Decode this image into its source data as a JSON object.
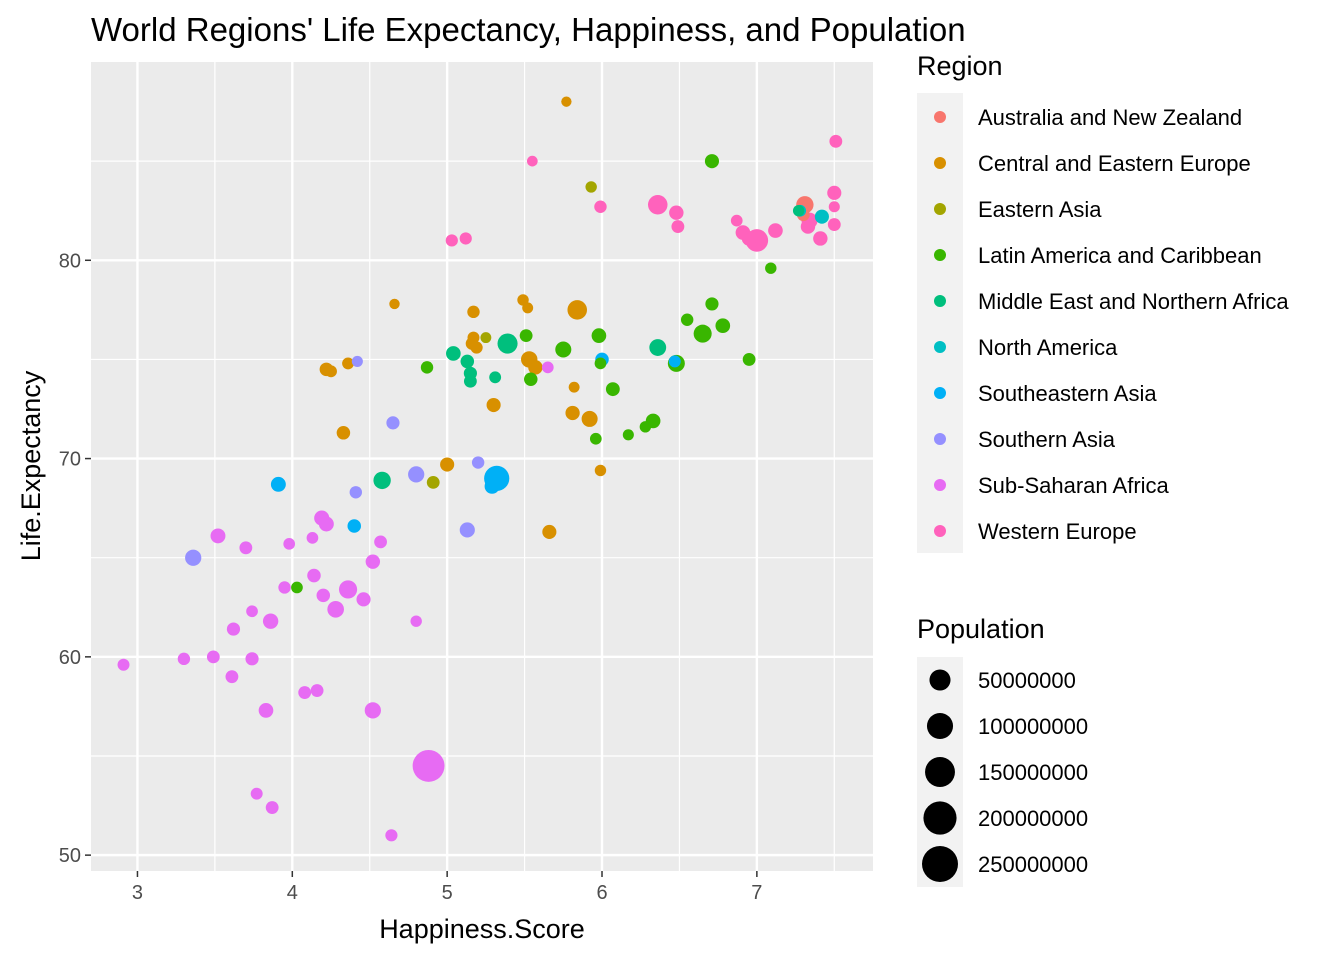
{
  "chart_data": {
    "type": "scatter",
    "title": "World Regions' Life Expectancy, Happiness, and Population",
    "xlabel": "Happiness.Score",
    "ylabel": "Life.Expectancy",
    "xlim": [
      2.7,
      7.75
    ],
    "ylim": [
      49.2,
      90
    ],
    "xticks": [
      3,
      4,
      5,
      6,
      7
    ],
    "yticks": [
      50,
      60,
      70,
      80
    ],
    "grid": true,
    "legend_position": "right",
    "color_legend": {
      "title": "Region",
      "entries": [
        {
          "name": "Australia and New Zealand",
          "color": "#F8766D"
        },
        {
          "name": "Central and Eastern Europe",
          "color": "#D89000"
        },
        {
          "name": "Eastern Asia",
          "color": "#A3A500"
        },
        {
          "name": "Latin America and Caribbean",
          "color": "#39B600"
        },
        {
          "name": "Middle East and Northern Africa",
          "color": "#00BF7D"
        },
        {
          "name": "North America",
          "color": "#00BFC4"
        },
        {
          "name": "Southeastern Asia",
          "color": "#00B0F6"
        },
        {
          "name": "Southern Asia",
          "color": "#9590FF"
        },
        {
          "name": "Sub-Saharan Africa",
          "color": "#E76BF3"
        },
        {
          "name": "Western Europe",
          "color": "#FF62BC"
        }
      ]
    },
    "size_legend": {
      "title": "Population",
      "entries": [
        {
          "label": "50000000",
          "value": 50000000
        },
        {
          "label": "100000000",
          "value": 100000000
        },
        {
          "label": "150000000",
          "value": 150000000
        },
        {
          "label": "200000000",
          "value": 200000000
        },
        {
          "label": "250000000",
          "value": 250000000
        }
      ]
    },
    "points": [
      {
        "region": 0,
        "x": 7.31,
        "y": 82.8,
        "pop": 24000000
      },
      {
        "region": 0,
        "x": 7.3,
        "y": 82.3,
        "pop": 5000000
      },
      {
        "region": 1,
        "x": 5.77,
        "y": 88.0,
        "pop": 600000
      },
      {
        "region": 1,
        "x": 5.84,
        "y": 77.5,
        "pop": 38000000
      },
      {
        "region": 1,
        "x": 4.66,
        "y": 77.8,
        "pop": 700000
      },
      {
        "region": 1,
        "x": 5.17,
        "y": 77.4,
        "pop": 4000000
      },
      {
        "region": 1,
        "x": 5.49,
        "y": 78.0,
        "pop": 2000000
      },
      {
        "region": 1,
        "x": 5.52,
        "y": 77.6,
        "pop": 1300000
      },
      {
        "region": 1,
        "x": 5.17,
        "y": 76.1,
        "pop": 3000000
      },
      {
        "region": 1,
        "x": 5.16,
        "y": 75.8,
        "pop": 4000000
      },
      {
        "region": 1,
        "x": 5.19,
        "y": 75.6,
        "pop": 3500000
      },
      {
        "region": 1,
        "x": 5.53,
        "y": 75.0,
        "pop": 19000000
      },
      {
        "region": 1,
        "x": 5.57,
        "y": 74.6,
        "pop": 10000000
      },
      {
        "region": 1,
        "x": 4.22,
        "y": 74.5,
        "pop": 7000000
      },
      {
        "region": 1,
        "x": 4.25,
        "y": 74.4,
        "pop": 2800000
      },
      {
        "region": 1,
        "x": 4.36,
        "y": 74.8,
        "pop": 2800000
      },
      {
        "region": 1,
        "x": 5.82,
        "y": 73.6,
        "pop": 1300000
      },
      {
        "region": 1,
        "x": 5.3,
        "y": 72.7,
        "pop": 9000000
      },
      {
        "region": 1,
        "x": 5.81,
        "y": 72.3,
        "pop": 9500000
      },
      {
        "region": 1,
        "x": 5.92,
        "y": 72.0,
        "pop": 17000000
      },
      {
        "region": 1,
        "x": 4.33,
        "y": 71.3,
        "pop": 7000000
      },
      {
        "region": 1,
        "x": 5.0,
        "y": 69.7,
        "pop": 9000000
      },
      {
        "region": 1,
        "x": 5.99,
        "y": 69.4,
        "pop": 2000000
      },
      {
        "region": 1,
        "x": 5.66,
        "y": 66.3,
        "pop": 9000000
      },
      {
        "region": 2,
        "x": 5.93,
        "y": 83.7,
        "pop": 2000000
      },
      {
        "region": 2,
        "x": 5.25,
        "y": 76.1,
        "pop": 1200000
      },
      {
        "region": 2,
        "x": 4.91,
        "y": 68.8,
        "pop": 5000000
      },
      {
        "region": 3,
        "x": 6.71,
        "y": 85.0,
        "pop": 9000000
      },
      {
        "region": 3,
        "x": 7.09,
        "y": 79.6,
        "pop": 2000000
      },
      {
        "region": 3,
        "x": 6.71,
        "y": 77.8,
        "pop": 6000000
      },
      {
        "region": 3,
        "x": 6.78,
        "y": 76.7,
        "pop": 11000000
      },
      {
        "region": 3,
        "x": 6.65,
        "y": 76.3,
        "pop": 28000000
      },
      {
        "region": 3,
        "x": 6.55,
        "y": 77.0,
        "pop": 4000000
      },
      {
        "region": 3,
        "x": 5.98,
        "y": 76.2,
        "pop": 11000000
      },
      {
        "region": 3,
        "x": 5.51,
        "y": 76.2,
        "pop": 5000000
      },
      {
        "region": 3,
        "x": 5.75,
        "y": 75.5,
        "pop": 17000000
      },
      {
        "region": 3,
        "x": 6.48,
        "y": 74.8,
        "pop": 22000000
      },
      {
        "region": 3,
        "x": 6.95,
        "y": 75.0,
        "pop": 5000000
      },
      {
        "region": 3,
        "x": 5.99,
        "y": 74.8,
        "pop": 2500000
      },
      {
        "region": 3,
        "x": 4.87,
        "y": 74.6,
        "pop": 4000000
      },
      {
        "region": 3,
        "x": 5.54,
        "y": 74.0,
        "pop": 7000000
      },
      {
        "region": 3,
        "x": 6.07,
        "y": 73.5,
        "pop": 8000000
      },
      {
        "region": 3,
        "x": 6.33,
        "y": 71.9,
        "pop": 11000000
      },
      {
        "region": 3,
        "x": 6.28,
        "y": 71.6,
        "pop": 2000000
      },
      {
        "region": 3,
        "x": 6.17,
        "y": 71.2,
        "pop": 1500000
      },
      {
        "region": 3,
        "x": 5.96,
        "y": 71.0,
        "pop": 2500000
      },
      {
        "region": 3,
        "x": 4.03,
        "y": 63.5,
        "pop": 2500000
      },
      {
        "region": 4,
        "x": 7.27,
        "y": 82.5,
        "pop": 2000000
      },
      {
        "region": 4,
        "x": 5.39,
        "y": 75.8,
        "pop": 42000000
      },
      {
        "region": 4,
        "x": 6.36,
        "y": 75.6,
        "pop": 21000000
      },
      {
        "region": 4,
        "x": 5.04,
        "y": 75.3,
        "pop": 11000000
      },
      {
        "region": 4,
        "x": 5.13,
        "y": 74.9,
        "pop": 7000000
      },
      {
        "region": 4,
        "x": 5.15,
        "y": 74.3,
        "pop": 6000000
      },
      {
        "region": 4,
        "x": 5.15,
        "y": 73.9,
        "pop": 5000000
      },
      {
        "region": 4,
        "x": 5.31,
        "y": 74.1,
        "pop": 2800000
      },
      {
        "region": 4,
        "x": 4.58,
        "y": 68.9,
        "pop": 24000000
      },
      {
        "region": 5,
        "x": 7.42,
        "y": 82.2,
        "pop": 9000000
      },
      {
        "region": 5,
        "x": 7.28,
        "y": 82.5,
        "pop": 2500000
      },
      {
        "region": 6,
        "x": 6.0,
        "y": 75.0,
        "pop": 7000000
      },
      {
        "region": 6,
        "x": 6.47,
        "y": 74.9,
        "pop": 3000000
      },
      {
        "region": 6,
        "x": 3.91,
        "y": 68.7,
        "pop": 12000000
      },
      {
        "region": 6,
        "x": 5.32,
        "y": 69.0,
        "pop": 90000000
      },
      {
        "region": 6,
        "x": 5.29,
        "y": 68.6,
        "pop": 12000000
      },
      {
        "region": 6,
        "x": 4.4,
        "y": 66.6,
        "pop": 7000000
      },
      {
        "region": 7,
        "x": 4.42,
        "y": 74.9,
        "pop": 1500000
      },
      {
        "region": 7,
        "x": 4.65,
        "y": 71.8,
        "pop": 6000000
      },
      {
        "region": 7,
        "x": 4.8,
        "y": 69.2,
        "pop": 18000000
      },
      {
        "region": 7,
        "x": 5.2,
        "y": 69.8,
        "pop": 4000000
      },
      {
        "region": 7,
        "x": 4.41,
        "y": 68.3,
        "pop": 4000000
      },
      {
        "region": 7,
        "x": 5.13,
        "y": 66.4,
        "pop": 13000000
      },
      {
        "region": 7,
        "x": 3.36,
        "y": 65.0,
        "pop": 18000000
      },
      {
        "region": 8,
        "x": 5.65,
        "y": 74.6,
        "pop": 2500000
      },
      {
        "region": 8,
        "x": 3.52,
        "y": 66.1,
        "pop": 12000000
      },
      {
        "region": 8,
        "x": 3.7,
        "y": 65.5,
        "pop": 5000000
      },
      {
        "region": 8,
        "x": 3.98,
        "y": 65.7,
        "pop": 2500000
      },
      {
        "region": 8,
        "x": 4.13,
        "y": 66.0,
        "pop": 2500000
      },
      {
        "region": 8,
        "x": 4.19,
        "y": 67.0,
        "pop": 13000000
      },
      {
        "region": 8,
        "x": 4.22,
        "y": 66.7,
        "pop": 12000000
      },
      {
        "region": 8,
        "x": 4.57,
        "y": 65.8,
        "pop": 5000000
      },
      {
        "region": 8,
        "x": 4.52,
        "y": 64.8,
        "pop": 10000000
      },
      {
        "region": 8,
        "x": 4.14,
        "y": 64.1,
        "pop": 7000000
      },
      {
        "region": 8,
        "x": 3.95,
        "y": 63.5,
        "pop": 4000000
      },
      {
        "region": 8,
        "x": 4.36,
        "y": 63.4,
        "pop": 29000000
      },
      {
        "region": 8,
        "x": 4.2,
        "y": 63.1,
        "pop": 7000000
      },
      {
        "region": 8,
        "x": 4.46,
        "y": 62.9,
        "pop": 9000000
      },
      {
        "region": 8,
        "x": 4.28,
        "y": 62.4,
        "pop": 20000000
      },
      {
        "region": 8,
        "x": 3.74,
        "y": 62.3,
        "pop": 2500000
      },
      {
        "region": 8,
        "x": 3.86,
        "y": 61.8,
        "pop": 14000000
      },
      {
        "region": 8,
        "x": 4.8,
        "y": 61.8,
        "pop": 2000000
      },
      {
        "region": 8,
        "x": 3.62,
        "y": 61.4,
        "pop": 6000000
      },
      {
        "region": 8,
        "x": 3.49,
        "y": 60.0,
        "pop": 5000000
      },
      {
        "region": 8,
        "x": 3.3,
        "y": 59.9,
        "pop": 4000000
      },
      {
        "region": 8,
        "x": 3.74,
        "y": 59.9,
        "pop": 6000000
      },
      {
        "region": 8,
        "x": 2.91,
        "y": 59.6,
        "pop": 3000000
      },
      {
        "region": 8,
        "x": 3.61,
        "y": 59.0,
        "pop": 5000000
      },
      {
        "region": 8,
        "x": 4.08,
        "y": 58.2,
        "pop": 5000000
      },
      {
        "region": 8,
        "x": 4.16,
        "y": 58.3,
        "pop": 5000000
      },
      {
        "region": 8,
        "x": 3.83,
        "y": 57.3,
        "pop": 11000000
      },
      {
        "region": 8,
        "x": 4.52,
        "y": 57.3,
        "pop": 18000000
      },
      {
        "region": 8,
        "x": 4.88,
        "y": 54.5,
        "pop": 180000000
      },
      {
        "region": 8,
        "x": 3.77,
        "y": 53.1,
        "pop": 3000000
      },
      {
        "region": 8,
        "x": 3.87,
        "y": 52.4,
        "pop": 5000000
      },
      {
        "region": 8,
        "x": 4.64,
        "y": 51.0,
        "pop": 3500000
      },
      {
        "region": 9,
        "x": 7.51,
        "y": 86.0,
        "pop": 5000000
      },
      {
        "region": 9,
        "x": 5.55,
        "y": 85.0,
        "pop": 1000000
      },
      {
        "region": 9,
        "x": 7.5,
        "y": 83.4,
        "pop": 9000000
      },
      {
        "region": 9,
        "x": 7.5,
        "y": 82.7,
        "pop": 1500000
      },
      {
        "region": 9,
        "x": 6.36,
        "y": 82.8,
        "pop": 38000000
      },
      {
        "region": 9,
        "x": 5.99,
        "y": 82.7,
        "pop": 4000000
      },
      {
        "region": 9,
        "x": 6.48,
        "y": 82.4,
        "pop": 10000000
      },
      {
        "region": 9,
        "x": 6.49,
        "y": 81.7,
        "pop": 5000000
      },
      {
        "region": 9,
        "x": 6.87,
        "y": 82.0,
        "pop": 2500000
      },
      {
        "region": 9,
        "x": 6.91,
        "y": 81.4,
        "pop": 11000000
      },
      {
        "region": 9,
        "x": 6.95,
        "y": 81.1,
        "pop": 11000000
      },
      {
        "region": 9,
        "x": 7.0,
        "y": 81.0,
        "pop": 63000000
      },
      {
        "region": 9,
        "x": 7.12,
        "y": 81.5,
        "pop": 11000000
      },
      {
        "region": 9,
        "x": 7.34,
        "y": 82.0,
        "pop": 17000000
      },
      {
        "region": 9,
        "x": 7.33,
        "y": 81.7,
        "pop": 10000000
      },
      {
        "region": 9,
        "x": 7.41,
        "y": 81.1,
        "pop": 10000000
      },
      {
        "region": 9,
        "x": 7.5,
        "y": 81.8,
        "pop": 5000000
      },
      {
        "region": 9,
        "x": 5.03,
        "y": 81.0,
        "pop": 3500000
      },
      {
        "region": 9,
        "x": 5.12,
        "y": 81.1,
        "pop": 3500000
      }
    ]
  }
}
